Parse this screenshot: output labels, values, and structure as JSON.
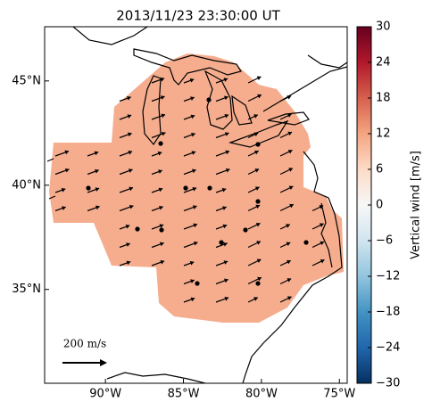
{
  "chart_data": {
    "type": "map",
    "title": "2013/11/23 23:30:00 UT",
    "xlim": [
      -93.9,
      -74.5
    ],
    "xticks": [
      {
        "value": -90,
        "label": "90°W"
      },
      {
        "value": -85,
        "label": "85°W"
      },
      {
        "value": -80,
        "label": "80°W"
      },
      {
        "value": -75,
        "label": "75°W"
      }
    ],
    "ylim": [
      30.5,
      47.6
    ],
    "yticks": [
      {
        "value": 35,
        "label": "35°N"
      },
      {
        "value": 40,
        "label": "40°N"
      },
      {
        "value": 45,
        "label": "45°N"
      }
    ],
    "region_color": "#f5ad8e",
    "annotation": "200 m/s",
    "colorbar": {
      "label": "Vertical wind [m/s]",
      "lim": [
        -30,
        30
      ],
      "ticks": [
        {
          "value": -30,
          "label": "−30"
        },
        {
          "value": -24,
          "label": "−24"
        },
        {
          "value": -18,
          "label": "−18"
        },
        {
          "value": -12,
          "label": "−12"
        },
        {
          "value": -6,
          "label": "−6"
        },
        0,
        6,
        12,
        18,
        24,
        30
      ],
      "colors": [
        "#053061",
        "#2166ac",
        "#4393c3",
        "#92c5de",
        "#d1e5f0",
        "#f7f7f7",
        "#fddbc7",
        "#f4a582",
        "#d6604d",
        "#b2182b",
        "#67001f"
      ]
    }
  }
}
